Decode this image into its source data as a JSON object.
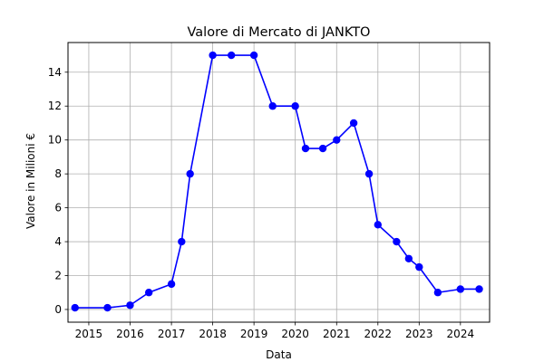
{
  "chart_data": {
    "type": "line",
    "title": "Valore di Mercato di JANKTO",
    "xlabel": "Data",
    "ylabel": "Valore in Milioni €",
    "x_ticks": [
      "2015",
      "2016",
      "2017",
      "2018",
      "2019",
      "2020",
      "2021",
      "2022",
      "2023",
      "2024"
    ],
    "y_ticks": [
      "0",
      "2",
      "4",
      "6",
      "8",
      "10",
      "12",
      "14"
    ],
    "xlim": [
      "2014-07-01",
      "2024-09-15"
    ],
    "ylim": [
      -0.75,
      15.75
    ],
    "grid": true,
    "series": [
      {
        "color": "#0000ff",
        "marker": "circle",
        "points": [
          {
            "x": "2014-09-01",
            "y": 0.1
          },
          {
            "x": "2015-06-15",
            "y": 0.1
          },
          {
            "x": "2016-01-01",
            "y": 0.25
          },
          {
            "x": "2016-06-15",
            "y": 1.0
          },
          {
            "x": "2017-01-01",
            "y": 1.5
          },
          {
            "x": "2017-04-01",
            "y": 4.0
          },
          {
            "x": "2017-06-15",
            "y": 8.0
          },
          {
            "x": "2018-01-01",
            "y": 15.0
          },
          {
            "x": "2018-06-15",
            "y": 15.0
          },
          {
            "x": "2019-01-01",
            "y": 15.0
          },
          {
            "x": "2019-06-15",
            "y": 12.0
          },
          {
            "x": "2020-01-01",
            "y": 12.0
          },
          {
            "x": "2020-04-01",
            "y": 9.5
          },
          {
            "x": "2020-09-01",
            "y": 9.5
          },
          {
            "x": "2021-01-01",
            "y": 10.0
          },
          {
            "x": "2021-06-01",
            "y": 11.0
          },
          {
            "x": "2021-10-15",
            "y": 8.0
          },
          {
            "x": "2022-01-01",
            "y": 5.0
          },
          {
            "x": "2022-06-15",
            "y": 4.0
          },
          {
            "x": "2022-10-01",
            "y": 3.0
          },
          {
            "x": "2023-01-01",
            "y": 2.5
          },
          {
            "x": "2023-06-15",
            "y": 1.0
          },
          {
            "x": "2024-01-01",
            "y": 1.2
          },
          {
            "x": "2024-06-15",
            "y": 1.2
          }
        ]
      }
    ]
  }
}
